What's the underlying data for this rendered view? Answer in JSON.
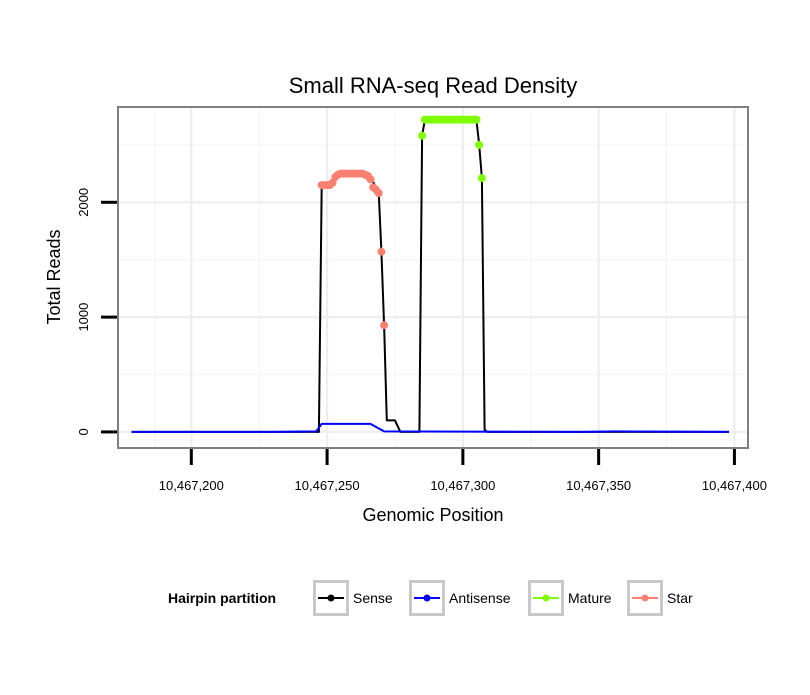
{
  "chart_data": {
    "type": "line",
    "title": "Small RNA-seq Read Density",
    "xlabel": "Genomic Position",
    "ylabel": "Total Reads",
    "xlim": [
      10467173,
      10467405
    ],
    "ylim": [
      -140,
      2830
    ],
    "x_ticks": [
      10467200,
      10467250,
      10467300,
      10467350,
      10467400
    ],
    "x_tick_labels": [
      "10,467,200",
      "10,467,250",
      "10,467,300",
      "10,467,350",
      "10,467,400"
    ],
    "y_ticks": [
      0,
      1000,
      2000
    ],
    "y_tick_labels": [
      "0",
      "1000",
      "2000"
    ],
    "grid": true,
    "legend": {
      "title": "Hairpin partition",
      "position": "bottom",
      "entries": [
        {
          "name": "Sense",
          "color": "#000000"
        },
        {
          "name": "Antisense",
          "color": "#0000ff"
        },
        {
          "name": "Mature",
          "color": "#7fff00"
        },
        {
          "name": "Star",
          "color": "#fa8072"
        }
      ]
    },
    "series": [
      {
        "name": "Sense",
        "kind": "line",
        "color": "#000000",
        "points": [
          [
            10467178,
            0
          ],
          [
            10467247,
            0
          ],
          [
            10467248,
            2150
          ],
          [
            10467250,
            2150
          ],
          [
            10467252,
            2170
          ],
          [
            10467254,
            2240
          ],
          [
            10467262,
            2250
          ],
          [
            10467266,
            2220
          ],
          [
            10467268,
            2130
          ],
          [
            10467269,
            2090
          ],
          [
            10467270,
            1570
          ],
          [
            10467271,
            930
          ],
          [
            10467272,
            100
          ],
          [
            10467275,
            100
          ],
          [
            10467277,
            0
          ],
          [
            10467284,
            0
          ],
          [
            10467285,
            2580
          ],
          [
            10467286,
            2720
          ],
          [
            10467305,
            2720
          ],
          [
            10467306,
            2500
          ],
          [
            10467307,
            2210
          ],
          [
            10467308,
            20
          ],
          [
            10467309,
            0
          ],
          [
            10467398,
            0
          ]
        ]
      },
      {
        "name": "Antisense",
        "kind": "line",
        "color": "#0000ff",
        "points": [
          [
            10467178,
            0
          ],
          [
            10467230,
            0
          ],
          [
            10467246,
            5
          ],
          [
            10467248,
            70
          ],
          [
            10467266,
            70
          ],
          [
            10467271,
            5
          ],
          [
            10467344,
            0
          ],
          [
            10467356,
            5
          ],
          [
            10467398,
            0
          ]
        ]
      },
      {
        "name": "Mature",
        "kind": "points",
        "color": "#7fff00",
        "points": [
          [
            10467285,
            2580
          ],
          [
            10467286,
            2720
          ],
          [
            10467287,
            2720
          ],
          [
            10467288,
            2720
          ],
          [
            10467289,
            2720
          ],
          [
            10467290,
            2720
          ],
          [
            10467291,
            2720
          ],
          [
            10467292,
            2720
          ],
          [
            10467293,
            2720
          ],
          [
            10467294,
            2720
          ],
          [
            10467295,
            2720
          ],
          [
            10467296,
            2720
          ],
          [
            10467297,
            2720
          ],
          [
            10467298,
            2720
          ],
          [
            10467299,
            2720
          ],
          [
            10467300,
            2720
          ],
          [
            10467301,
            2720
          ],
          [
            10467302,
            2720
          ],
          [
            10467303,
            2720
          ],
          [
            10467304,
            2720
          ],
          [
            10467305,
            2720
          ],
          [
            10467306,
            2500
          ],
          [
            10467307,
            2210
          ]
        ]
      },
      {
        "name": "Star",
        "kind": "points",
        "color": "#fa8072",
        "points": [
          [
            10467248,
            2150
          ],
          [
            10467249,
            2150
          ],
          [
            10467250,
            2150
          ],
          [
            10467251,
            2150
          ],
          [
            10467252,
            2170
          ],
          [
            10467253,
            2220
          ],
          [
            10467254,
            2240
          ],
          [
            10467255,
            2250
          ],
          [
            10467256,
            2250
          ],
          [
            10467257,
            2250
          ],
          [
            10467258,
            2250
          ],
          [
            10467259,
            2250
          ],
          [
            10467260,
            2250
          ],
          [
            10467261,
            2250
          ],
          [
            10467262,
            2250
          ],
          [
            10467263,
            2250
          ],
          [
            10467264,
            2240
          ],
          [
            10467265,
            2230
          ],
          [
            10467266,
            2200
          ],
          [
            10467267,
            2130
          ],
          [
            10467268,
            2110
          ],
          [
            10467269,
            2080
          ],
          [
            10467270,
            1570
          ],
          [
            10467271,
            930
          ]
        ]
      }
    ]
  }
}
